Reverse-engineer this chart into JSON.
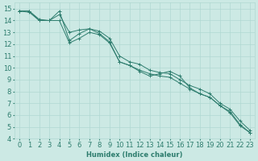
{
  "xlabel": "Humidex (Indice chaleur)",
  "xlim": [
    -0.5,
    23.5
  ],
  "ylim": [
    4,
    15.5
  ],
  "background_color": "#cce9e4",
  "grid_color": "#b0d8d2",
  "line_color": "#2e7d6e",
  "lines": [
    {
      "x": [
        0,
        1,
        2,
        3,
        4,
        5,
        6,
        7,
        8,
        9,
        10,
        11,
        12,
        13,
        14,
        15,
        16,
        17,
        18,
        19,
        20,
        21,
        22,
        23
      ],
      "y": [
        14.8,
        14.8,
        14.1,
        14.0,
        14.8,
        12.3,
        12.9,
        13.3,
        13.1,
        12.5,
        11.0,
        10.5,
        10.3,
        9.8,
        9.6,
        9.5,
        9.0,
        8.5,
        8.2,
        7.8,
        7.0,
        6.5,
        5.5,
        4.7
      ]
    },
    {
      "x": [
        0,
        1,
        2,
        3,
        4,
        5,
        6,
        7,
        8,
        9,
        10,
        11,
        12,
        13,
        14,
        15,
        16,
        17,
        18,
        19,
        20,
        21,
        22,
        23
      ],
      "y": [
        14.8,
        14.8,
        14.0,
        14.0,
        14.0,
        12.1,
        12.5,
        13.0,
        12.8,
        12.1,
        10.5,
        10.2,
        9.8,
        9.5,
        9.3,
        9.2,
        8.7,
        8.2,
        7.8,
        7.5,
        6.8,
        6.3,
        5.2,
        4.5
      ]
    },
    {
      "x": [
        0,
        1,
        2,
        3,
        4,
        5,
        6,
        7,
        8,
        9,
        10,
        11,
        12,
        13,
        14,
        15,
        16,
        17,
        18,
        19,
        20,
        21,
        22,
        23
      ],
      "y": [
        14.8,
        14.7,
        14.0,
        14.0,
        14.5,
        13.0,
        13.2,
        13.3,
        12.9,
        12.2,
        10.5,
        10.2,
        9.7,
        9.3,
        9.5,
        9.7,
        9.3,
        8.3,
        7.8,
        7.5,
        6.8,
        6.2,
        5.1,
        4.5
      ]
    }
  ],
  "xticks": [
    0,
    1,
    2,
    3,
    4,
    5,
    6,
    7,
    8,
    9,
    10,
    11,
    12,
    13,
    14,
    15,
    16,
    17,
    18,
    19,
    20,
    21,
    22,
    23
  ],
  "yticks": [
    4,
    5,
    6,
    7,
    8,
    9,
    10,
    11,
    12,
    13,
    14,
    15
  ],
  "font_size": 6,
  "marker_size": 3,
  "linewidth": 0.7
}
